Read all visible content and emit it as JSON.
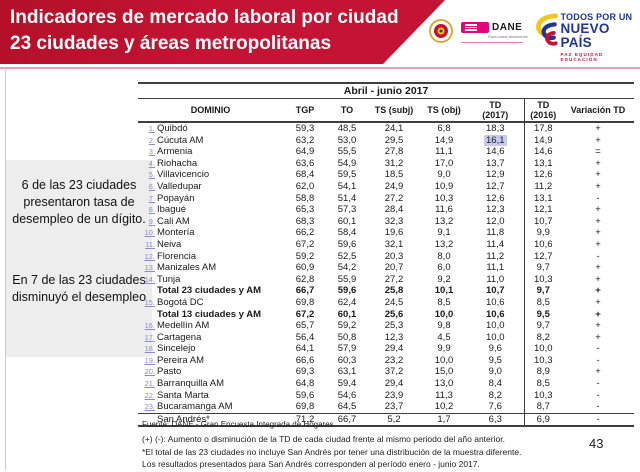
{
  "header": {
    "title": "Indicadores de mercado laboral por ciudad\n23 ciudades y áreas metropolitanas",
    "logos": {
      "dane_word": "DANE",
      "dane_tagline": "Para tomar decisiones",
      "npais_line1": "TODOS POR UN",
      "npais_line2": "NUEVO PAÍS",
      "npais_line3": "PAZ  EQUIDAD  EDUCACIÓN"
    }
  },
  "sidebar": {
    "note1": "6 de las 23 ciudades presentaron tasa de desempleo de un dígito.",
    "note2": "En 7 de las 23 ciudades disminuyó el desempleo"
  },
  "table": {
    "period": "Abril - junio 2017",
    "columns": [
      "DOMINIO",
      "TGP",
      "TO",
      "TS (subj)",
      "TS (obj)",
      "TD\n(2017)",
      "TD\n(2016)",
      "Variación TD"
    ],
    "rows": [
      {
        "num": "1.",
        "city": "Quibdó",
        "vals": [
          "59,3",
          "48,5",
          "24,1",
          "6,8",
          "18,3",
          "17,8",
          "+"
        ]
      },
      {
        "num": "2.",
        "city": "Cúcuta AM",
        "vals": [
          "63,2",
          "53,0",
          "29,5",
          "14,9",
          "16,1",
          "14,9",
          "+"
        ],
        "highlight": true
      },
      {
        "num": "3.",
        "city": "Armenia",
        "vals": [
          "64,9",
          "55,5",
          "27,8",
          "11,1",
          "14,6",
          "14,6",
          "="
        ]
      },
      {
        "num": "4.",
        "city": "Riohacha",
        "vals": [
          "63,6",
          "54,9",
          "31,2",
          "17,0",
          "13,7",
          "13,1",
          "+"
        ]
      },
      {
        "num": "5.",
        "city": "Villavicencio",
        "vals": [
          "68,4",
          "59,5",
          "18,5",
          "9,0",
          "12,9",
          "12,6",
          "+"
        ]
      },
      {
        "num": "6.",
        "city": "Valledupar",
        "vals": [
          "62,0",
          "54,1",
          "24,9",
          "10,9",
          "12,7",
          "11,2",
          "+"
        ]
      },
      {
        "num": "7.",
        "city": "Popayán",
        "vals": [
          "58,8",
          "51,4",
          "27,2",
          "10,3",
          "12,6",
          "13,1",
          "-"
        ]
      },
      {
        "num": "8.",
        "city": "Ibagué",
        "vals": [
          "65,3",
          "57,3",
          "28,4",
          "11,6",
          "12,3",
          "12,1",
          "+"
        ]
      },
      {
        "num": "9.",
        "city": "Cali AM",
        "vals": [
          "68,3",
          "60,1",
          "32,3",
          "13,2",
          "12,0",
          "10,7",
          "+"
        ]
      },
      {
        "num": "10.",
        "city": "Montería",
        "vals": [
          "66,2",
          "58,4",
          "19,6",
          "9,1",
          "11,8",
          "9,9",
          "+"
        ]
      },
      {
        "num": "11.",
        "city": "Neiva",
        "vals": [
          "67,2",
          "59,6",
          "32,1",
          "13,2",
          "11,4",
          "10,6",
          "+"
        ]
      },
      {
        "num": "12.",
        "city": "Florencia",
        "vals": [
          "59,2",
          "52,5",
          "20,3",
          "8,0",
          "11,2",
          "12,7",
          "-"
        ]
      },
      {
        "num": "13.",
        "city": "Manizales AM",
        "vals": [
          "60,9",
          "54,2",
          "20,7",
          "6,0",
          "11,1",
          "9,7",
          "+"
        ]
      },
      {
        "num": "14.",
        "city": "Tunja",
        "vals": [
          "62,8",
          "55,9",
          "27,2",
          "9,2",
          "11,0",
          "10,3",
          "+"
        ]
      },
      {
        "num": "",
        "city": "Total 23 ciudades y AM",
        "vals": [
          "66,7",
          "59,6",
          "25,8",
          "10,1",
          "10,7",
          "9,7",
          "+"
        ],
        "bold": true
      },
      {
        "num": "15.",
        "city": "Bogotá DC",
        "vals": [
          "69,8",
          "62,4",
          "24,5",
          "8,5",
          "10,6",
          "8,5",
          "+"
        ]
      },
      {
        "num": "",
        "city": "Total 13 ciudades y AM",
        "vals": [
          "67,2",
          "60,1",
          "25,6",
          "10,0",
          "10,6",
          "9,5",
          "+"
        ],
        "bold": true
      },
      {
        "num": "16.",
        "city": "Medellín AM",
        "vals": [
          "65,7",
          "59,2",
          "25,3",
          "9,8",
          "10,0",
          "9,7",
          "+"
        ]
      },
      {
        "num": "17.",
        "city": "Cartagena",
        "vals": [
          "56,4",
          "50,8",
          "12,3",
          "4,5",
          "10,0",
          "8,2",
          "+"
        ]
      },
      {
        "num": "18.",
        "city": "Sincelejo",
        "vals": [
          "64,1",
          "57,9",
          "29,4",
          "9,9",
          "9,6",
          "10,0",
          "-"
        ]
      },
      {
        "num": "19.",
        "city": "Pereira AM",
        "vals": [
          "66,6",
          "60,3",
          "23,2",
          "10,0",
          "9,5",
          "10,3",
          "-"
        ]
      },
      {
        "num": "20.",
        "city": "Pasto",
        "vals": [
          "69,3",
          "63,1",
          "37,2",
          "15,0",
          "9,0",
          "8,9",
          "+"
        ]
      },
      {
        "num": "21.",
        "city": "Barranquilla AM",
        "vals": [
          "64,8",
          "59,4",
          "29,4",
          "13,0",
          "8,4",
          "8,5",
          "-"
        ]
      },
      {
        "num": "22.",
        "city": "Santa Marta",
        "vals": [
          "59,6",
          "54,6",
          "23,9",
          "11,3",
          "8,2",
          "10,3",
          "-"
        ]
      },
      {
        "num": "23.",
        "city": "Bucaramanga AM",
        "vals": [
          "69,8",
          "64,5",
          "23,7",
          "10,2",
          "7,6",
          "8,7",
          "-"
        ]
      },
      {
        "num": "",
        "city": "San Andrés*",
        "vals": [
          "71,2",
          "66,7",
          "5,2",
          "1,7",
          "6,3",
          "6,9",
          "-"
        ],
        "sep": true
      }
    ]
  },
  "footnotes": [
    "Fuente: DANE - Gran Encuesta Integrada de Hogares",
    "(+) (-): Aumento o disminución de la TD de cada ciudad frente al mismo periodo del año anterior.",
    "*El total de las 23 ciudades no incluye San Andrés por tener una distribución de la muestra diferente.",
    "Los resultados presentados para San Andrés corresponden al período enero - junio 2017."
  ],
  "page_number": "43",
  "colors": {
    "banner_red": "#c41433",
    "highlight_cell": "#c9c9ef",
    "row_link": "#8a8ad4",
    "dane_magenta": "#e5007d",
    "npais_blue": "#21368c"
  }
}
